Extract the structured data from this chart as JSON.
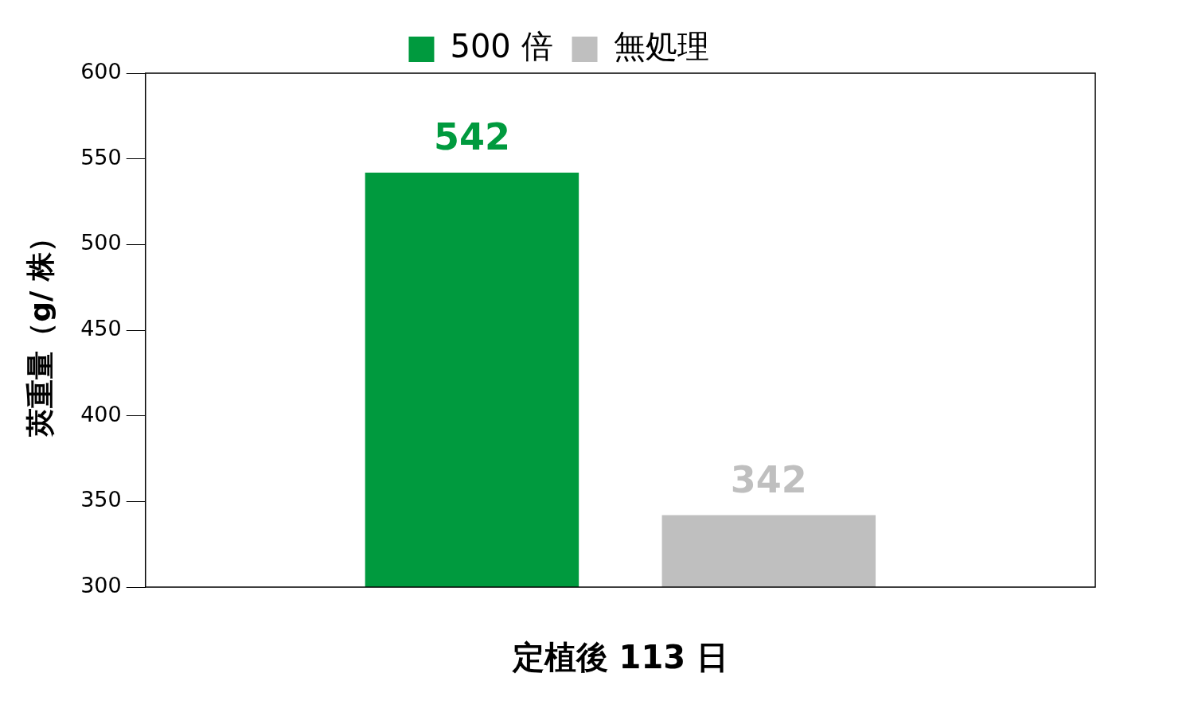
{
  "chart_data": {
    "type": "bar",
    "categories": [
      null
    ],
    "xlabel": "定植後 113 日",
    "ylabel": "莢重量（g/ 株）",
    "series": [
      {
        "name": "500 倍",
        "color": "#009a3e",
        "values": [
          542
        ]
      },
      {
        "name": "無処理",
        "color": "#bfbfbf",
        "values": [
          342
        ]
      }
    ],
    "ylim": [
      300,
      600
    ],
    "yticks": [
      300,
      350,
      400,
      450,
      500,
      550,
      600
    ],
    "grid": false,
    "legend": "top",
    "data_labels": true
  }
}
